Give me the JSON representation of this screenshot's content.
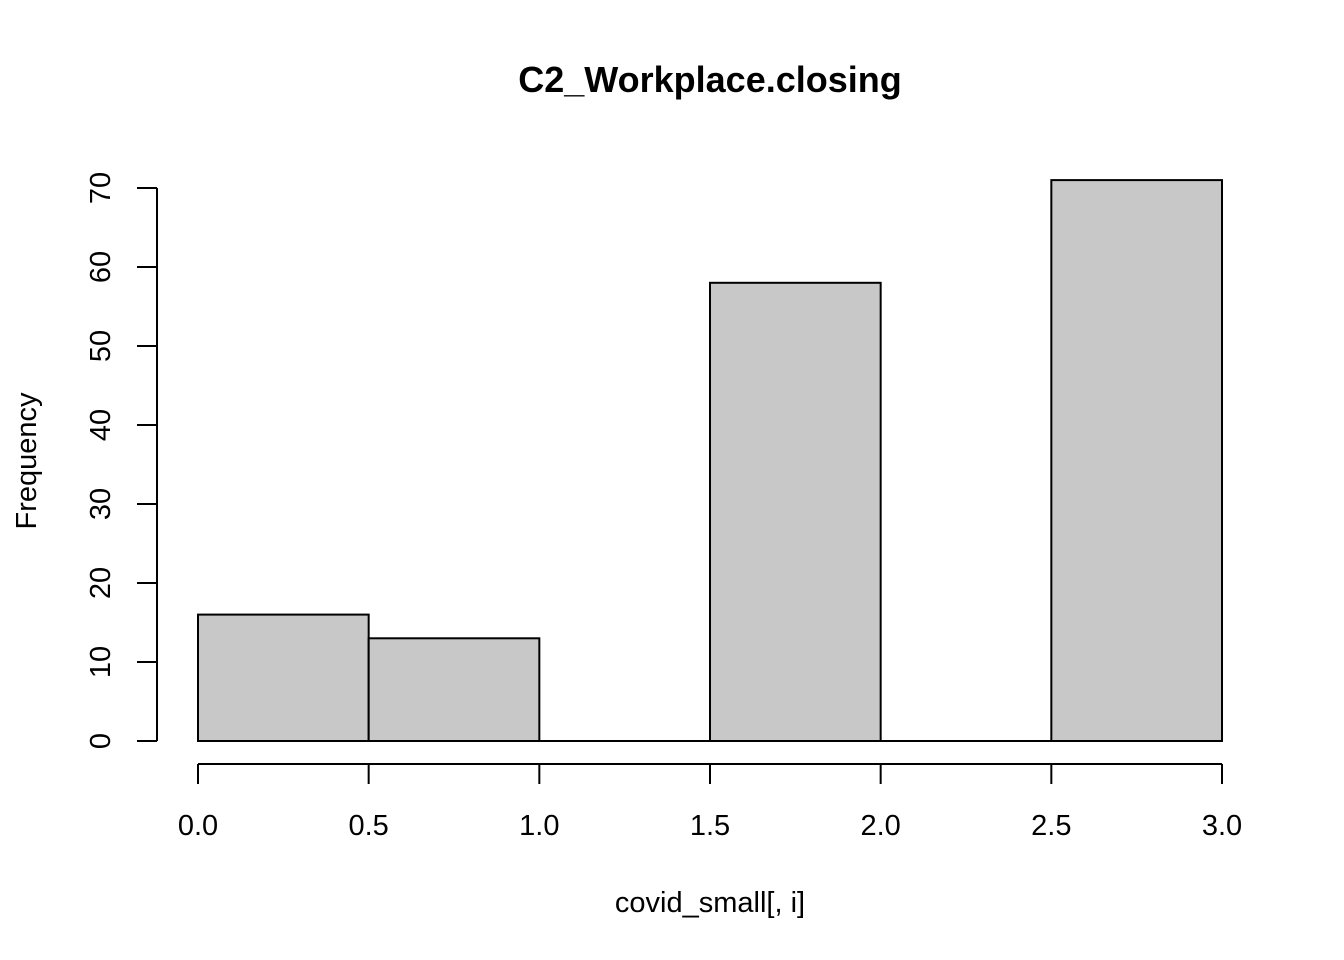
{
  "chart_data": {
    "type": "bar",
    "histogram": true,
    "title": "C2_Workplace.closing",
    "xlabel": "covid_small[, i]",
    "ylabel": "Frequency",
    "bins": [
      {
        "x0": 0.0,
        "x1": 0.5,
        "count": 16
      },
      {
        "x0": 0.5,
        "x1": 1.0,
        "count": 13
      },
      {
        "x0": 1.0,
        "x1": 1.5,
        "count": 0
      },
      {
        "x0": 1.5,
        "x1": 2.0,
        "count": 58
      },
      {
        "x0": 2.0,
        "x1": 2.5,
        "count": 0
      },
      {
        "x0": 2.5,
        "x1": 3.0,
        "count": 71
      }
    ],
    "xlim": [
      0,
      3
    ],
    "ylim": [
      0,
      70
    ],
    "x_ticks": [
      "0.0",
      "0.5",
      "1.0",
      "1.5",
      "2.0",
      "2.5",
      "3.0"
    ],
    "y_ticks": [
      "0",
      "10",
      "20",
      "30",
      "40",
      "50",
      "60",
      "70"
    ],
    "grid": false,
    "bar_fill": "#c8c8c8",
    "bar_stroke": "#000000"
  }
}
